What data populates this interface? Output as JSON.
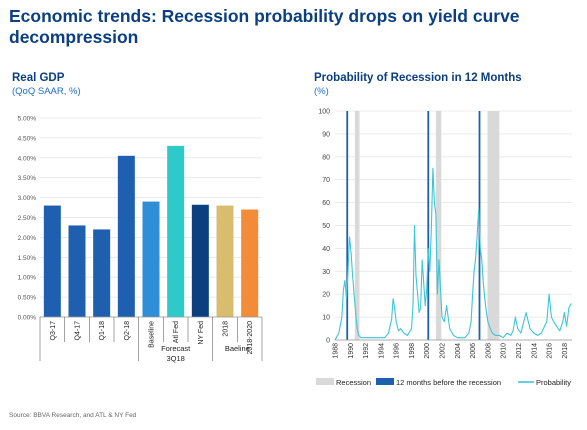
{
  "page": {
    "title": "Economic trends: Recession  probability drops on yield curve decompression",
    "source": "Source: BBVA Research, and ATL & NY Fed"
  },
  "colors": {
    "navy": "#0b3f7f",
    "blue": "#1f6fc3",
    "light_blue": "#2e8fd6",
    "cyan": "#2ec9c9",
    "tan": "#d8bd6f",
    "orange": "#f28c38",
    "recession_gray": "#d9d9d9",
    "line_blue": "#1f5fb0",
    "probability": "#3dc6d6"
  },
  "chart_data": [
    {
      "type": "bar",
      "title": "Real GDP",
      "subtitle": "(QoQ SAAR, %)",
      "categories": [
        "Q3-17",
        "Q4-17",
        "Q1-18",
        "Q2-18",
        "Baseline",
        "Atl Fed",
        "NY Fed",
        "2018",
        "2018-2020"
      ],
      "values": [
        2.8,
        2.3,
        2.2,
        4.05,
        2.9,
        4.3,
        2.82,
        2.8,
        2.7
      ],
      "bar_colors": [
        "#1f5fb0",
        "#1f5fb0",
        "#1f5fb0",
        "#1f5fb0",
        "#2e8fd6",
        "#2ec9c9",
        "#0b3f7f",
        "#d8bd6f",
        "#f28c38"
      ],
      "ylim": [
        0,
        5
      ],
      "yticks": [
        "0.00%",
        "0.50%",
        "1.00%",
        "1.50%",
        "2.00%",
        "2.50%",
        "3.00%",
        "3.50%",
        "4.00%",
        "4.50%",
        "5.00%"
      ],
      "groups": [
        {
          "label_line1": "Forecast",
          "label_line2": "3Q18",
          "from": 4,
          "to": 6
        },
        {
          "label_line1": "Baeline",
          "label_line2": "",
          "from": 7,
          "to": 8
        }
      ],
      "grid": true
    },
    {
      "type": "line",
      "title": "Probability of Recession in 12 Months",
      "subtitle": "(%)",
      "ylim": [
        0,
        100
      ],
      "yticks": [
        0,
        10,
        20,
        30,
        40,
        50,
        60,
        70,
        80,
        90,
        100
      ],
      "xlim": [
        1988,
        2019
      ],
      "xticks": [
        "1988",
        "1990",
        "1992",
        "1994",
        "1996",
        "1998",
        "2000",
        "2002",
        "2004",
        "2006",
        "2008",
        "2010",
        "2012",
        "2014",
        "2016",
        "2018"
      ],
      "recessions": [
        [
          1990.6,
          1991.2
        ],
        [
          2001.2,
          2001.9
        ],
        [
          2007.95,
          2009.5
        ]
      ],
      "twelve_months_before": [
        1989.6,
        2000.2,
        2006.9
      ],
      "series": [
        {
          "name": "Probability",
          "x": [
            1988,
            1988.5,
            1988.9,
            1989.1,
            1989.3,
            1989.5,
            1989.7,
            1989.9,
            1990.1,
            1990.3,
            1990.5,
            1990.7,
            1990.9,
            1991.1,
            1991.4,
            1991.8,
            1992.3,
            1993,
            1993.8,
            1994.5,
            1995,
            1995.4,
            1995.6,
            1995.8,
            1996.0,
            1996.3,
            1996.6,
            1997,
            1997.5,
            1998,
            1998.2,
            1998.4,
            1998.6,
            1998.8,
            1999.0,
            1999.2,
            1999.4,
            1999.6,
            1999.8,
            2000.0,
            2000.2,
            2000.4,
            2000.6,
            2000.8,
            2001.0,
            2001.2,
            2001.4,
            2001.6,
            2001.8,
            2002.0,
            2002.3,
            2002.6,
            2003.0,
            2003.5,
            2004.0,
            2004.5,
            2005.0,
            2005.5,
            2005.8,
            2006.0,
            2006.2,
            2006.4,
            2006.6,
            2006.8,
            2007.0,
            2007.2,
            2007.4,
            2007.6,
            2007.8,
            2008.0,
            2008.3,
            2008.6,
            2009.0,
            2009.5,
            2010.0,
            2010.5,
            2011.0,
            2011.3,
            2011.6,
            2011.9,
            2012.3,
            2012.7,
            2013.0,
            2013.5,
            2014.0,
            2014.5,
            2015.0,
            2015.4,
            2015.7,
            2016.0,
            2016.3,
            2016.6,
            2017.0,
            2017.4,
            2017.8,
            2018.0,
            2018.3,
            2018.6,
            2018.9
          ],
          "values": [
            0,
            3,
            10,
            22,
            26,
            18,
            30,
            45,
            38,
            28,
            20,
            12,
            5,
            2,
            1,
            1,
            1,
            1,
            1,
            1,
            3,
            9,
            18,
            14,
            8,
            4,
            5,
            3,
            2,
            5,
            15,
            50,
            28,
            20,
            12,
            14,
            35,
            25,
            15,
            22,
            40,
            30,
            48,
            75,
            60,
            55,
            20,
            35,
            22,
            10,
            8,
            15,
            5,
            2,
            1,
            1,
            1,
            3,
            8,
            20,
            30,
            36,
            46,
            57,
            40,
            35,
            25,
            18,
            12,
            8,
            5,
            3,
            2,
            2,
            1,
            3,
            2,
            4,
            10,
            5,
            3,
            8,
            12,
            5,
            3,
            2,
            3,
            6,
            8,
            20,
            10,
            8,
            6,
            4,
            8,
            12,
            6,
            14,
            16
          ]
        }
      ],
      "legend": {
        "position": "bottom",
        "recession_label": "Recession",
        "before_label": "12 months before the recession",
        "probability_label": "Probability"
      },
      "grid": true
    }
  ]
}
